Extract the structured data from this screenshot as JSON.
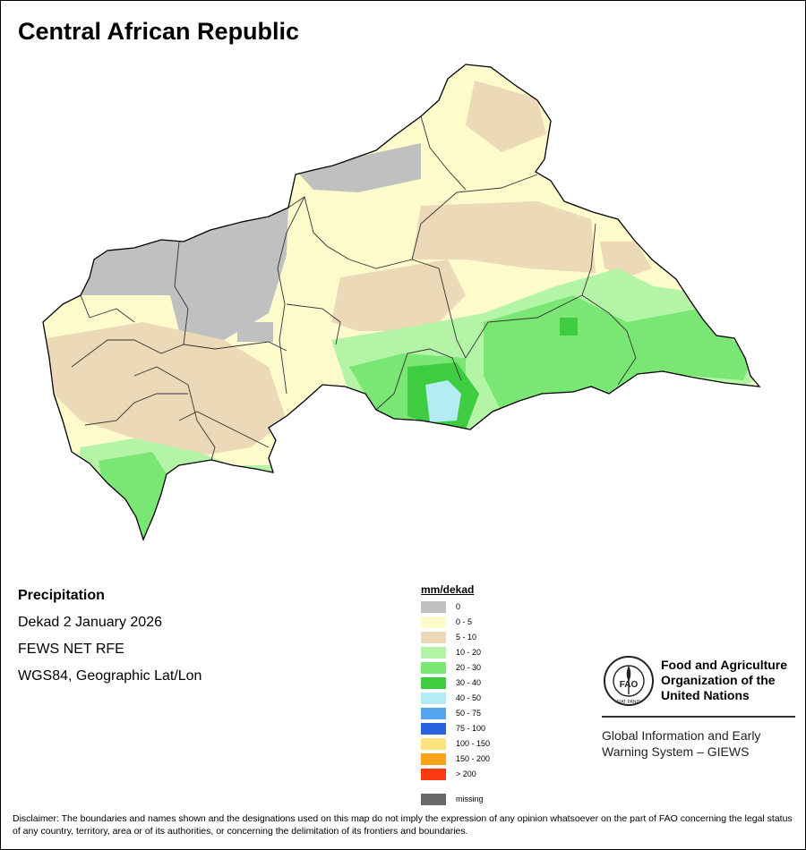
{
  "title": "Central African Republic",
  "info": {
    "heading": "Precipitation",
    "period": "Dekad 2 January 2026",
    "source": "FEWS NET RFE",
    "projection": "WGS84, Geographic Lat/Lon"
  },
  "legend": {
    "title": "mm/dekad",
    "classes": [
      {
        "label": "0",
        "color": "#c0c0c0"
      },
      {
        "label": "0 - 5",
        "color": "#fdfbcc"
      },
      {
        "label": "5 - 10",
        "color": "#ecd9b8"
      },
      {
        "label": "10 - 20",
        "color": "#b4f4a7"
      },
      {
        "label": "20 - 30",
        "color": "#7ae673"
      },
      {
        "label": "30 - 40",
        "color": "#3ecd41"
      },
      {
        "label": "40 - 50",
        "color": "#b3ecf3"
      },
      {
        "label": "50 - 75",
        "color": "#55a6f0"
      },
      {
        "label": "75 - 100",
        "color": "#2864de"
      },
      {
        "label": "100 - 150",
        "color": "#fde27e"
      },
      {
        "label": "150 - 200",
        "color": "#fba318"
      },
      {
        "label": "> 200",
        "color": "#fc3a11"
      }
    ],
    "missing": {
      "label": "missing",
      "color": "#686868"
    }
  },
  "fao": {
    "org_name": "Food and Agriculture Organization of the United Nations",
    "system": "Global Information and Early Warning System – GIEWS",
    "emblem_text": "FAO",
    "motto": "FIAT PANIS"
  },
  "disclaimer": "Disclaimer: The boundaries and names shown and the designations used on this map do not imply the expression of any opinion whatsoever on the part of FAO concerning the legal status of any country, territory, area or of its authorities, or concerning the delimitation of its frontiers and boundaries."
}
